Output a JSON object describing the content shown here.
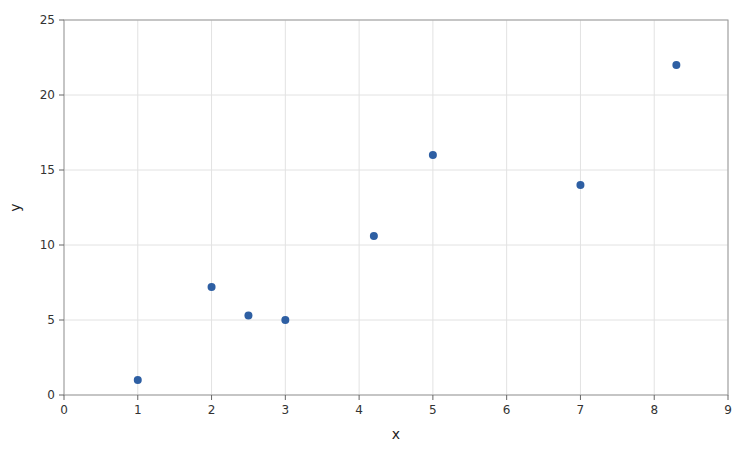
{
  "chart_data": {
    "type": "scatter",
    "x": [
      1,
      2,
      2.5,
      3,
      4.2,
      5,
      7,
      8.3
    ],
    "values": [
      1,
      7.2,
      5.3,
      5,
      10.6,
      16,
      14,
      22
    ],
    "color": "#2E5FA3",
    "xlabel": "x",
    "ylabel": "y",
    "xlim": [
      0,
      9
    ],
    "ylim": [
      0,
      25
    ],
    "xticks": [
      0,
      1,
      2,
      3,
      4,
      5,
      6,
      7,
      8,
      9
    ],
    "yticks": [
      0,
      5,
      10,
      15,
      20,
      25
    ],
    "grid": true
  }
}
